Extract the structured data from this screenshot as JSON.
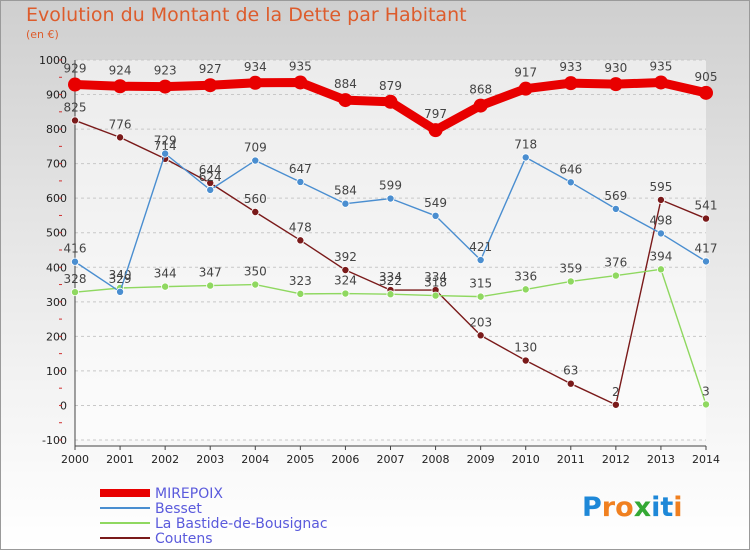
{
  "title": "Evolution du Montant de la Dette par Habitant",
  "unit": "(en €)",
  "brand": {
    "text": "Proxiti",
    "letters": [
      "P",
      "r",
      "o",
      "x",
      "i",
      "t",
      "i"
    ],
    "colors": [
      "#1e88d8",
      "#f08020",
      "#f08020",
      "#34a834",
      "#1e88d8",
      "#1e88d8",
      "#f08020"
    ]
  },
  "chart_data": {
    "type": "line",
    "x": [
      2000,
      2001,
      2002,
      2003,
      2004,
      2005,
      2006,
      2007,
      2008,
      2009,
      2010,
      2011,
      2012,
      2013,
      2014
    ],
    "ylim": [
      -100,
      1000
    ],
    "yticks": [
      -100,
      0,
      100,
      200,
      300,
      400,
      500,
      600,
      700,
      800,
      900,
      1000
    ],
    "grid": "horizontal dashed",
    "legend_position": "bottom-left",
    "series": [
      {
        "name": "Coutens",
        "color": "#7a1a1a",
        "values": [
          825,
          776,
          714,
          644,
          560,
          478,
          392,
          334,
          334,
          203,
          130,
          63,
          2,
          595,
          541
        ]
      },
      {
        "name": "La Bastide-de-Bousignac",
        "color": "#8fd860",
        "values": [
          328,
          340,
          344,
          347,
          350,
          323,
          324,
          322,
          318,
          315,
          336,
          359,
          376,
          394,
          3
        ]
      },
      {
        "name": "Besset",
        "color": "#4a8ed0",
        "values": [
          416,
          329,
          729,
          624,
          709,
          647,
          584,
          599,
          549,
          421,
          718,
          646,
          569,
          498,
          417
        ]
      },
      {
        "name": "MIREPOIX",
        "color": "#e80000",
        "values": [
          929,
          924,
          923,
          927,
          934,
          935,
          884,
          879,
          797,
          868,
          917,
          933,
          930,
          935,
          905
        ]
      }
    ]
  }
}
